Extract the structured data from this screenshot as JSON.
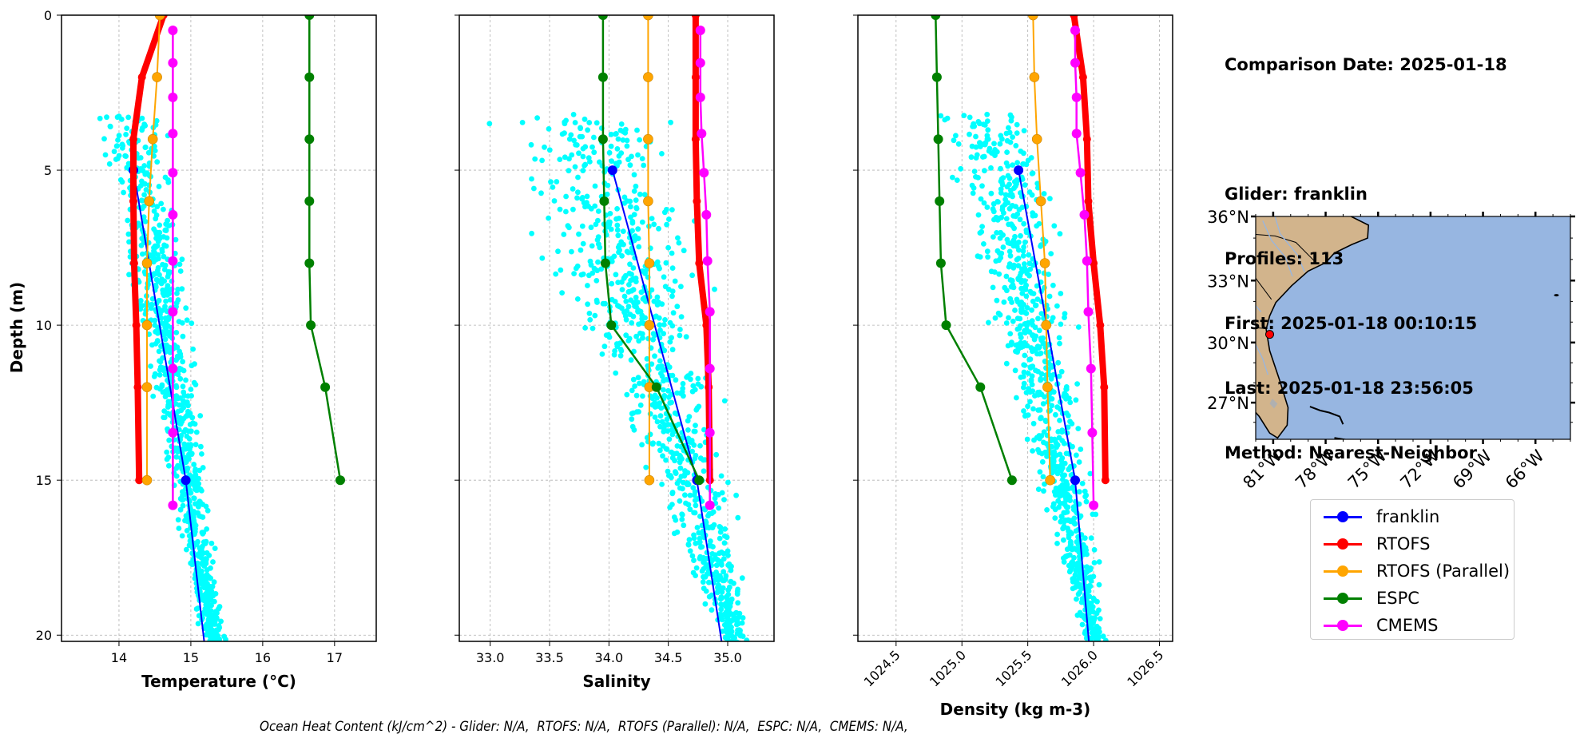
{
  "info": {
    "comparison_date": "Comparison Date: 2025-01-18",
    "glider": "Glider: franklin",
    "profiles": "Profiles: 113",
    "first": "First: 2025-01-18 00:10:15",
    "last": "Last: 2025-01-18 23:56:05",
    "method": "Method: Nearest-Neighbor"
  },
  "footer": "Ocean Heat Content (kJ/cm^2) - Glider: N/A,  RTOFS: N/A,  RTOFS (Parallel): N/A,  ESPC: N/A,  CMEMS: N/A,",
  "legend": [
    {
      "label": "franklin",
      "color": "#0000ff"
    },
    {
      "label": "RTOFS",
      "color": "#ff0000"
    },
    {
      "label": "RTOFS (Parallel)",
      "color": "#ffa500"
    },
    {
      "label": "ESPC",
      "color": "#008000"
    },
    {
      "label": "CMEMS",
      "color": "#ff00ff"
    }
  ],
  "chart_data": [
    {
      "type": "line",
      "title": "",
      "xlabel": "Temperature (°C)",
      "ylabel": "Depth (m)",
      "xlim": [
        13.2,
        17.58
      ],
      "ylim": [
        20.2,
        0
      ],
      "xticks": [
        14,
        15,
        16,
        17
      ],
      "xtick_labels": [
        "14",
        "15",
        "16",
        "17"
      ],
      "yticks": [
        0,
        5,
        10,
        15,
        20
      ],
      "ytick_labels": [
        "0",
        "5",
        "10",
        "15",
        "20"
      ],
      "grid": true,
      "scatter": {
        "name": "glider profiles",
        "color": "#00ffff",
        "depth_range": [
          3.2,
          20.5
        ],
        "x_surface_range": [
          13.7,
          14.6
        ],
        "x_bottom_range": [
          15.2,
          15.5
        ]
      },
      "series": [
        {
          "name": "franklin",
          "color": "#0000ff",
          "depth": [
            5,
            15,
            20.5
          ],
          "values": [
            14.2,
            14.93,
            15.2
          ]
        },
        {
          "name": "RTOFS",
          "color": "#ff0000",
          "depth": [
            0,
            2,
            4,
            6,
            8,
            10,
            12,
            15
          ],
          "values": [
            14.62,
            14.32,
            14.2,
            14.2,
            14.21,
            14.24,
            14.26,
            14.28
          ]
        },
        {
          "name": "RTOFS (Parallel)",
          "color": "#ffa500",
          "depth": [
            0,
            2,
            4,
            6,
            8,
            10,
            12,
            15
          ],
          "values": [
            14.57,
            14.53,
            14.47,
            14.42,
            14.39,
            14.39,
            14.39,
            14.39
          ]
        },
        {
          "name": "ESPC",
          "color": "#008000",
          "depth": [
            0,
            2,
            4,
            6,
            8,
            10,
            12,
            15
          ],
          "values": [
            16.65,
            16.65,
            16.65,
            16.65,
            16.65,
            16.67,
            16.87,
            17.08
          ]
        },
        {
          "name": "CMEMS",
          "color": "#ff00ff",
          "depth": [
            0.49,
            1.54,
            2.65,
            3.82,
            5.08,
            6.44,
            7.93,
            9.57,
            11.4,
            13.47,
            15.81
          ],
          "values": [
            14.75,
            14.75,
            14.75,
            14.75,
            14.75,
            14.75,
            14.75,
            14.75,
            14.75,
            14.75,
            14.75
          ]
        }
      ]
    },
    {
      "type": "line",
      "title": "",
      "xlabel": "Salinity",
      "ylabel": "",
      "xlim": [
        32.74,
        35.39
      ],
      "ylim": [
        20.2,
        0
      ],
      "xticks": [
        33.0,
        33.5,
        34.0,
        34.5,
        35.0
      ],
      "xtick_labels": [
        "33.0",
        "33.5",
        "34.0",
        "34.5",
        "35.0"
      ],
      "yticks": [
        0,
        5,
        10,
        15,
        20
      ],
      "grid": true,
      "scatter": {
        "name": "glider profiles",
        "color": "#00ffff",
        "depth_range": [
          3.2,
          20.5
        ],
        "x_surface_range": [
          33.0,
          34.5
        ],
        "x_bottom_range": [
          35.0,
          35.2
        ]
      },
      "series": [
        {
          "name": "franklin",
          "color": "#0000ff",
          "depth": [
            5,
            15,
            20.5
          ],
          "values": [
            34.03,
            34.74,
            34.96
          ]
        },
        {
          "name": "RTOFS",
          "color": "#ff0000",
          "depth": [
            0,
            2,
            4,
            6,
            8,
            10,
            12,
            15
          ],
          "values": [
            34.73,
            34.73,
            34.73,
            34.74,
            34.76,
            34.82,
            34.84,
            34.85
          ]
        },
        {
          "name": "RTOFS (Parallel)",
          "color": "#ffa500",
          "depth": [
            0,
            2,
            4,
            6,
            8,
            10,
            12,
            15
          ],
          "values": [
            34.33,
            34.33,
            34.33,
            34.33,
            34.34,
            34.34,
            34.34,
            34.34
          ]
        },
        {
          "name": "ESPC",
          "color": "#008000",
          "depth": [
            0,
            2,
            4,
            6,
            8,
            10,
            12,
            15
          ],
          "values": [
            33.95,
            33.95,
            33.95,
            33.96,
            33.97,
            34.02,
            34.4,
            34.76
          ]
        },
        {
          "name": "CMEMS",
          "color": "#ff00ff",
          "depth": [
            0.49,
            1.54,
            2.65,
            3.82,
            5.08,
            6.44,
            7.93,
            9.57,
            11.4,
            13.47,
            15.81
          ],
          "values": [
            34.77,
            34.77,
            34.77,
            34.78,
            34.8,
            34.82,
            34.83,
            34.85,
            34.85,
            34.85,
            34.85
          ]
        }
      ]
    },
    {
      "type": "line",
      "title": "",
      "xlabel": "Density (kg m-3)",
      "ylabel": "",
      "xlim": [
        1024.21,
        1026.6
      ],
      "ylim": [
        20.2,
        0
      ],
      "xticks": [
        1024.5,
        1025.0,
        1025.5,
        1026.0,
        1026.5
      ],
      "xtick_labels": [
        "1024.5",
        "1025.0",
        "1025.5",
        "1026.0",
        "1026.5"
      ],
      "yticks": [
        0,
        5,
        10,
        15,
        20
      ],
      "grid": true,
      "scatter": {
        "name": "glider profiles",
        "color": "#00ffff",
        "depth_range": [
          3.2,
          20.5
        ],
        "x_surface_range": [
          1024.8,
          1025.6
        ],
        "x_bottom_range": [
          1025.95,
          1026.1
        ]
      },
      "series": [
        {
          "name": "franklin",
          "color": "#0000ff",
          "depth": [
            5,
            15,
            20.5
          ],
          "values": [
            1025.43,
            1025.86,
            1025.97
          ]
        },
        {
          "name": "RTOFS",
          "color": "#ff0000",
          "depth": [
            0,
            2,
            4,
            6,
            8,
            10,
            12,
            15
          ],
          "values": [
            1025.85,
            1025.92,
            1025.95,
            1025.96,
            1026.0,
            1026.05,
            1026.08,
            1026.09
          ]
        },
        {
          "name": "RTOFS (Parallel)",
          "color": "#ffa500",
          "depth": [
            0,
            2,
            4,
            6,
            8,
            10,
            12,
            15
          ],
          "values": [
            1025.54,
            1025.55,
            1025.57,
            1025.6,
            1025.63,
            1025.64,
            1025.65,
            1025.67
          ]
        },
        {
          "name": "ESPC",
          "color": "#008000",
          "depth": [
            0,
            2,
            4,
            6,
            8,
            10,
            12,
            15
          ],
          "values": [
            1024.8,
            1024.81,
            1024.82,
            1024.83,
            1024.84,
            1024.88,
            1025.14,
            1025.38
          ]
        },
        {
          "name": "CMEMS",
          "color": "#ff00ff",
          "depth": [
            0.49,
            1.54,
            2.65,
            3.82,
            5.08,
            6.44,
            7.93,
            9.57,
            11.4,
            13.47,
            15.81
          ],
          "values": [
            1025.86,
            1025.86,
            1025.87,
            1025.87,
            1025.9,
            1025.93,
            1025.95,
            1025.96,
            1025.98,
            1025.99,
            1026.0
          ]
        }
      ]
    },
    {
      "type": "map",
      "lon_range": [
        -82.0,
        -64.0
      ],
      "lat_range": [
        25.13,
        36.0
      ],
      "xticks": [
        -81,
        -78,
        -75,
        -72,
        -69,
        -66
      ],
      "xtick_labels": [
        "81°W",
        "78°W",
        "75°W",
        "72°W",
        "69°W",
        "66°W"
      ],
      "yticks": [
        27,
        30,
        33,
        36
      ],
      "ytick_labels": [
        "27°N",
        "30°N",
        "33°N",
        "36°N"
      ],
      "land_color": "#d2b48c",
      "ocean_color": "#97b6e1",
      "glider_position": {
        "lon": -81.2,
        "lat": 30.4,
        "color": "#ff0000"
      }
    }
  ]
}
